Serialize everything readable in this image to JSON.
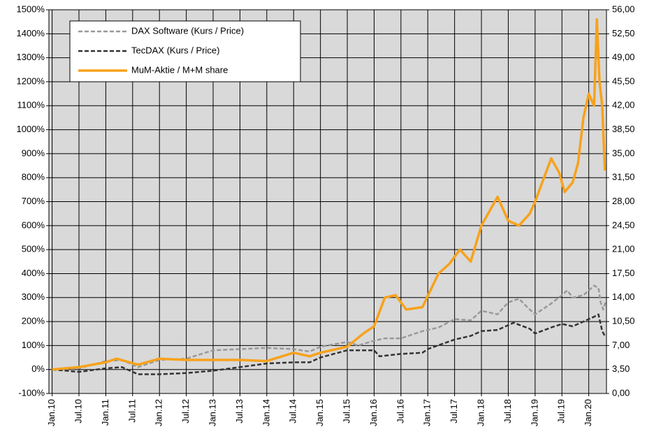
{
  "chart_data": {
    "type": "line",
    "legend": "top-left",
    "grid": true,
    "xlim": [
      2009.94,
      2020.33
    ],
    "xticks": [
      {
        "value": 2010,
        "label": "Jan.10"
      },
      {
        "value": 2010.5,
        "label": "Jul.10"
      },
      {
        "value": 2011,
        "label": "Jan.11"
      },
      {
        "value": 2011.5,
        "label": "Jul.11"
      },
      {
        "value": 2012,
        "label": "Jan.12"
      },
      {
        "value": 2012.5,
        "label": "Jul.12"
      },
      {
        "value": 2013,
        "label": "Jan.13"
      },
      {
        "value": 2013.5,
        "label": "Jul.13"
      },
      {
        "value": 2014,
        "label": "Jan.14"
      },
      {
        "value": 2014.5,
        "label": "Jul.14"
      },
      {
        "value": 2015,
        "label": "Jan.15"
      },
      {
        "value": 2015.5,
        "label": "Jul.15"
      },
      {
        "value": 2016,
        "label": "Jan.16"
      },
      {
        "value": 2016.5,
        "label": "Jul.16"
      },
      {
        "value": 2017,
        "label": "Jan.17"
      },
      {
        "value": 2017.5,
        "label": "Jul.17"
      },
      {
        "value": 2018,
        "label": "Jan.18"
      },
      {
        "value": 2018.5,
        "label": "Jul.18"
      },
      {
        "value": 2019,
        "label": "Jan.19"
      },
      {
        "value": 2019.5,
        "label": "Jul.19"
      },
      {
        "value": 2020,
        "label": "Jan.20"
      }
    ],
    "ylim": [
      -100,
      1500
    ],
    "yticks": [
      {
        "value": -100,
        "label": "-100%"
      },
      {
        "value": 0,
        "label": "0%"
      },
      {
        "value": 100,
        "label": "100%"
      },
      {
        "value": 200,
        "label": "200%"
      },
      {
        "value": 300,
        "label": "300%"
      },
      {
        "value": 400,
        "label": "400%"
      },
      {
        "value": 500,
        "label": "500%"
      },
      {
        "value": 600,
        "label": "600%"
      },
      {
        "value": 700,
        "label": "700%"
      },
      {
        "value": 800,
        "label": "800%"
      },
      {
        "value": 900,
        "label": "900%"
      },
      {
        "value": 1000,
        "label": "1000%"
      },
      {
        "value": 1100,
        "label": "1100%"
      },
      {
        "value": 1200,
        "label": "1200%"
      },
      {
        "value": 1300,
        "label": "1300%"
      },
      {
        "value": 1400,
        "label": "1400%"
      },
      {
        "value": 1500,
        "label": "1500%"
      }
    ],
    "y2lim": [
      0,
      56
    ],
    "y2ticks": [
      {
        "value": 0,
        "label": "0,00"
      },
      {
        "value": 3.5,
        "label": "3,50"
      },
      {
        "value": 7,
        "label": "7,00"
      },
      {
        "value": 10.5,
        "label": "10,50"
      },
      {
        "value": 14,
        "label": "14,00"
      },
      {
        "value": 17.5,
        "label": "17,50"
      },
      {
        "value": 21,
        "label": "21,00"
      },
      {
        "value": 24.5,
        "label": "24,50"
      },
      {
        "value": 28,
        "label": "28,00"
      },
      {
        "value": 31.5,
        "label": "31,50"
      },
      {
        "value": 35,
        "label": "35,00"
      },
      {
        "value": 38.5,
        "label": "38,50"
      },
      {
        "value": 42,
        "label": "42,00"
      },
      {
        "value": 45.5,
        "label": "45,50"
      },
      {
        "value": 49,
        "label": "49,00"
      },
      {
        "value": 52.5,
        "label": "52,50"
      },
      {
        "value": 56,
        "label": "56,00"
      }
    ],
    "series": [
      {
        "name": "DAX Software (Kurs / Price)",
        "color": "#999999",
        "style": "dashed",
        "x": [
          2010,
          2010.5,
          2011,
          2011.3,
          2011.6,
          2012,
          2012.5,
          2013,
          2013.5,
          2014,
          2014.5,
          2014.8,
          2015,
          2015.5,
          2015.7,
          2016,
          2016.2,
          2016.5,
          2016.9,
          2017.2,
          2017.5,
          2017.8,
          2018,
          2018.3,
          2018.5,
          2018.7,
          2018.9,
          2019,
          2019.3,
          2019.5,
          2019.6,
          2019.7,
          2019.9,
          2020,
          2020.1,
          2020.18,
          2020.22,
          2020.27,
          2020.31
        ],
        "values": [
          0,
          5,
          35,
          40,
          10,
          40,
          45,
          80,
          85,
          90,
          85,
          75,
          95,
          115,
          100,
          120,
          130,
          130,
          160,
          175,
          210,
          205,
          245,
          230,
          280,
          295,
          250,
          230,
          275,
          310,
          330,
          300,
          310,
          330,
          350,
          340,
          280,
          250,
          280
        ]
      },
      {
        "name": "TecDAX (Kurs / Price)",
        "color": "#333333",
        "style": "dashed",
        "x": [
          2010,
          2010.5,
          2011,
          2011.3,
          2011.6,
          2012,
          2012.5,
          2013,
          2013.5,
          2014,
          2014.5,
          2014.8,
          2015,
          2015.5,
          2015.7,
          2016,
          2016.1,
          2016.5,
          2016.9,
          2017,
          2017.5,
          2017.8,
          2018,
          2018.3,
          2018.6,
          2018.9,
          2019,
          2019.3,
          2019.5,
          2019.7,
          2019.9,
          2020.1,
          2020.18,
          2020.25,
          2020.3
        ],
        "values": [
          0,
          -10,
          5,
          10,
          -20,
          -20,
          -15,
          -5,
          10,
          25,
          30,
          30,
          50,
          80,
          80,
          80,
          55,
          65,
          70,
          85,
          125,
          140,
          160,
          165,
          195,
          170,
          150,
          175,
          190,
          180,
          200,
          220,
          230,
          160,
          140
        ]
      },
      {
        "name": "MuM-Aktie / M+M share",
        "color": "#f7a21b",
        "style": "solid",
        "axis": "y2",
        "x": [
          2010,
          2010.5,
          2011,
          2011.2,
          2011.6,
          2012,
          2012.5,
          2013,
          2013.5,
          2014,
          2014.5,
          2014.8,
          2015,
          2015.5,
          2015.8,
          2016,
          2016.2,
          2016.4,
          2016.6,
          2016.9,
          2017.2,
          2017.4,
          2017.6,
          2017.8,
          2018,
          2018.3,
          2018.5,
          2018.7,
          2018.9,
          2019,
          2019.3,
          2019.45,
          2019.55,
          2019.7,
          2019.8,
          2019.9,
          2020,
          2020.1,
          2020.15,
          2020.2,
          2020.25,
          2020.3
        ],
        "values": [
          3.5,
          3.85,
          4.55,
          5.08,
          4.2,
          5.08,
          4.9,
          4.9,
          4.9,
          4.73,
          5.95,
          5.43,
          5.95,
          6.83,
          8.75,
          9.8,
          14.0,
          14.35,
          12.25,
          12.6,
          17.5,
          18.9,
          21.0,
          19.25,
          24.5,
          28.7,
          25.2,
          24.5,
          26.25,
          28.0,
          34.3,
          32.2,
          29.4,
          30.8,
          33.6,
          40.25,
          43.75,
          42.0,
          54.6,
          45.5,
          42.0,
          32.55
        ]
      }
    ]
  }
}
